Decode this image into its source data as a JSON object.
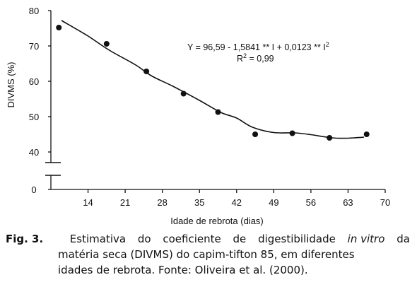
{
  "chart_data": {
    "type": "scatter",
    "title": "",
    "xlabel": "Idade de rebrota (dias)",
    "ylabel": "DIVMS (%)",
    "x_ticks": [
      "14",
      "21",
      "28",
      "35",
      "42",
      "49",
      "56",
      "63",
      "70"
    ],
    "x_tick_values": [
      14,
      21,
      28,
      35,
      42,
      49,
      56,
      63,
      70
    ],
    "y_ticks": [
      40,
      50,
      60,
      70,
      80
    ],
    "y_zero_label": "0",
    "xlim": [
      7,
      70
    ],
    "ylim": [
      40,
      80
    ],
    "y_axis_break": true,
    "grid": false,
    "legend": "none",
    "series": [
      {
        "points": [
          {
            "x": 8.5,
            "y": 75.2
          },
          {
            "x": 17.5,
            "y": 70.6
          },
          {
            "x": 25,
            "y": 62.8
          },
          {
            "x": 32,
            "y": 56.5
          },
          {
            "x": 38.5,
            "y": 51.3
          },
          {
            "x": 45.5,
            "y": 45.0
          },
          {
            "x": 52.5,
            "y": 45.3
          },
          {
            "x": 59.5,
            "y": 44.0
          },
          {
            "x": 66.5,
            "y": 45.0
          }
        ]
      }
    ],
    "fit_curve": [
      {
        "x": 9,
        "y": 77.2
      },
      {
        "x": 14,
        "y": 72.8
      },
      {
        "x": 18,
        "y": 68.8
      },
      {
        "x": 23,
        "y": 64.6
      },
      {
        "x": 26,
        "y": 61.5
      },
      {
        "x": 30,
        "y": 58.6
      },
      {
        "x": 35,
        "y": 54.6
      },
      {
        "x": 39,
        "y": 51.2
      },
      {
        "x": 42,
        "y": 49.6
      },
      {
        "x": 45,
        "y": 47.0
      },
      {
        "x": 49,
        "y": 45.5
      },
      {
        "x": 53,
        "y": 45.4
      },
      {
        "x": 56,
        "y": 44.9
      },
      {
        "x": 60,
        "y": 44.0
      },
      {
        "x": 63,
        "y": 43.9
      },
      {
        "x": 66,
        "y": 44.2
      }
    ],
    "annotations": {
      "equation_main": "Y = 96,59  - 1,5841 ** I + 0,0123 ** I",
      "equation_exp": "2",
      "r2_label": "R",
      "r2_exp": "2",
      "r2_value": " = 0,99"
    },
    "colors": {
      "ink": "#111111",
      "background": "#ffffff"
    }
  },
  "caption": {
    "label": "Fig. 3.",
    "line1_words": [
      "Estimativa",
      "do",
      "coeficiente",
      "de",
      "digestibilidade"
    ],
    "line1_italic": "in vitro",
    "line1_end": "da",
    "line2": "matéria seca (DIVMS) do capim-tifton 85, em diferentes",
    "line3": "idades de rebrota. Fonte: Oliveira et al. (2000)."
  }
}
